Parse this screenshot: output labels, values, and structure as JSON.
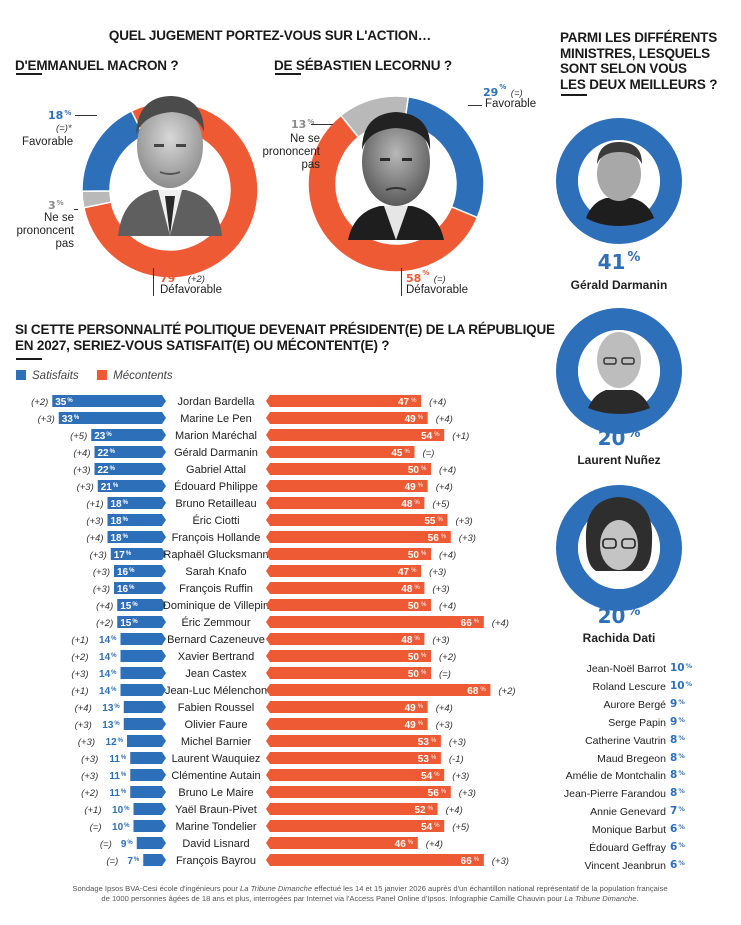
{
  "header": {
    "main_question": "QUEL JUGEMENT PORTEZ-VOUS SUR L'ACTION…",
    "macron_title": "D'EMMANUEL MACRON ?",
    "lecornu_title": "DE SÉBASTIEN LECORNU ?",
    "ministers_title_lines": [
      "PARMI LES DIFFÉRENTS",
      "MINISTRES, LESQUELS",
      "SONT SELON VOUS",
      "LES DEUX MEILLEURS ?"
    ],
    "bar_title_lines": [
      "SI CETTE PERSONNALITÉ POLITIQUE DEVENAIT PRÉSIDENT(E) DE LA RÉPUBLIQUE",
      "EN 2027, SERIEZ-VOUS SATISFAIT(E) OU MÉCONTENT(E) ?"
    ]
  },
  "colors": {
    "satisfied": "#2e6fba",
    "discontent": "#ee5a34",
    "no_opinion": "#b9b9b9"
  },
  "pct_symbol": "%",
  "macron": {
    "favorable": {
      "value": "18",
      "change": "(=)*",
      "label": "Favorable"
    },
    "no_opinion": {
      "value": "3",
      "label_lines": [
        "Ne se",
        "prononcent",
        "pas"
      ]
    },
    "unfavorable": {
      "value": "79",
      "change": "(+2)",
      "label": "Défavorable"
    }
  },
  "lecornu": {
    "favorable": {
      "value": "29",
      "change": "(=)",
      "label": "Favorable"
    },
    "no_opinion": {
      "value": "13",
      "label_lines": [
        "Ne se",
        "prononcent",
        "pas"
      ]
    },
    "unfavorable": {
      "value": "58",
      "change": "(=)",
      "label": "Défavorable"
    }
  },
  "legend": {
    "satisfied": "Satisfaits",
    "discontent": "Mécontents"
  },
  "ministers_top": [
    {
      "name": "Gérald Darmanin",
      "value": "41"
    },
    {
      "name": "Laurent Nuñez",
      "value": "20"
    },
    {
      "name": "Rachida Dati",
      "value": "20"
    }
  ],
  "ministers_others": [
    {
      "name": "Jean-Noël Barrot",
      "value": "10"
    },
    {
      "name": "Roland Lescure",
      "value": "10"
    },
    {
      "name": "Aurore Bergé",
      "value": "9"
    },
    {
      "name": "Serge Papin",
      "value": "9"
    },
    {
      "name": "Catherine Vautrin",
      "value": "8"
    },
    {
      "name": "Maud Bregeon",
      "value": "8"
    },
    {
      "name": "Amélie de Montchalin",
      "value": "8"
    },
    {
      "name": "Jean-Pierre Farandou",
      "value": "8"
    },
    {
      "name": "Annie Genevard",
      "value": "7"
    },
    {
      "name": "Monique Barbut",
      "value": "6"
    },
    {
      "name": "Édouard Geffray",
      "value": "6"
    },
    {
      "name": "Vincent Jeanbrun",
      "value": "6"
    }
  ],
  "footer": {
    "line1_a": "Sondage Ipsos BVA-Cesi école d'ingénieurs pour ",
    "line1_i": "La Tribune Dimanche",
    "line1_b": " effectué les 14 et 15 janvier 2026 auprès d'un échantillon national représentatif de la population française",
    "line2_a": "de 1000 personnes âgées de 18 ans et plus, interrogées par Internet via l'Access Panel Online d'Ipsos. Infographie Camille Chauvin pour ",
    "line2_i": "La Tribune Dimanche",
    "line2_b": "."
  },
  "chart_data": [
    {
      "type": "pie",
      "title": "D'EMMANUEL MACRON ?",
      "categories": [
        "Favorable",
        "Ne se prononcent pas",
        "Défavorable"
      ],
      "values": [
        18,
        3,
        79
      ],
      "changes": [
        "(=)*",
        "",
        "(+2)"
      ]
    },
    {
      "type": "pie",
      "title": "DE SÉBASTIEN LECORNU ?",
      "categories": [
        "Favorable",
        "Ne se prononcent pas",
        "Défavorable"
      ],
      "values": [
        29,
        13,
        58
      ],
      "changes": [
        "(=)",
        "",
        "(=)"
      ]
    },
    {
      "type": "bar",
      "title": "PARMI LES DIFFÉRENTS MINISTRES, LESQUELS SONT SELON VOUS LES DEUX MEILLEURS ?",
      "categories": [
        "Gérald Darmanin",
        "Laurent Nuñez",
        "Rachida Dati",
        "Jean-Noël Barrot",
        "Roland Lescure",
        "Aurore Bergé",
        "Serge Papin",
        "Catherine Vautrin",
        "Maud Bregeon",
        "Amélie de Montchalin",
        "Jean-Pierre Farandou",
        "Annie Genevard",
        "Monique Barbut",
        "Édouard Geffray",
        "Vincent Jeanbrun"
      ],
      "values": [
        41,
        20,
        20,
        10,
        10,
        9,
        9,
        8,
        8,
        8,
        8,
        7,
        6,
        6,
        6
      ],
      "unit": "%"
    },
    {
      "type": "bar",
      "title": "SI CETTE PERSONNALITÉ POLITIQUE DEVENAIT PRÉSIDENT(E) DE LA RÉPUBLIQUE EN 2027, SERIEZ-VOUS SATISFAIT(E) OU MÉCONTENT(E) ?",
      "orientation": "horizontal-diverging",
      "legend": [
        "Satisfaits",
        "Mécontents"
      ],
      "legend_position": "top-left",
      "categories": [
        "Jordan Bardella",
        "Marine Le Pen",
        "Marion Maréchal",
        "Gérald Darmanin",
        "Gabriel Attal",
        "Édouard Philippe",
        "Bruno Retailleau",
        "Éric Ciotti",
        "François Hollande",
        "Raphaël Glucksmann",
        "Sarah Knafo",
        "François Ruffin",
        "Dominique de Villepin",
        "Éric Zemmour",
        "Bernard Cazeneuve",
        "Xavier Bertrand",
        "Jean Castex",
        "Jean-Luc Mélenchon",
        "Fabien Roussel",
        "Olivier Faure",
        "Michel Barnier",
        "Laurent Wauquiez",
        "Clémentine Autain",
        "Bruno Le Maire",
        "Yaël Braun-Pivet",
        "Marine Tondelier",
        "David Lisnard",
        "François Bayrou"
      ],
      "series": [
        {
          "name": "Satisfaits",
          "values": [
            35,
            33,
            23,
            22,
            22,
            21,
            18,
            18,
            18,
            17,
            16,
            16,
            15,
            15,
            14,
            14,
            14,
            14,
            13,
            13,
            12,
            11,
            11,
            11,
            10,
            10,
            9,
            7
          ],
          "changes": [
            "(+2)",
            "(+3)",
            "(+5)",
            "(+4)",
            "(+3)",
            "(+3)",
            "(+1)",
            "(+3)",
            "(+4)",
            "(+3)",
            "(+3)",
            "(+3)",
            "(+4)",
            "(+2)",
            "(+1)",
            "(+2)",
            "(+3)",
            "(+1)",
            "(+4)",
            "(+3)",
            "(+3)",
            "(+3)",
            "(+3)",
            "(+2)",
            "(+1)",
            "(=)",
            "(=)",
            "(=)"
          ]
        },
        {
          "name": "Mécontents",
          "values": [
            47,
            49,
            54,
            45,
            50,
            49,
            48,
            55,
            56,
            50,
            47,
            48,
            50,
            66,
            48,
            50,
            50,
            68,
            49,
            49,
            53,
            53,
            54,
            56,
            52,
            54,
            46,
            66
          ],
          "changes": [
            "(+4)",
            "(+4)",
            "(+1)",
            "(=)",
            "(+4)",
            "(+4)",
            "(+5)",
            "(+3)",
            "(+3)",
            "(+4)",
            "(+3)",
            "(+3)",
            "(+4)",
            "(+4)",
            "(+3)",
            "(+2)",
            "(=)",
            "(+2)",
            "(+4)",
            "(+3)",
            "(+3)",
            "(-1)",
            "(+3)",
            "(+3)",
            "(+4)",
            "(+5)",
            "(+4)",
            "(+3)"
          ]
        }
      ],
      "unit": "%"
    }
  ]
}
